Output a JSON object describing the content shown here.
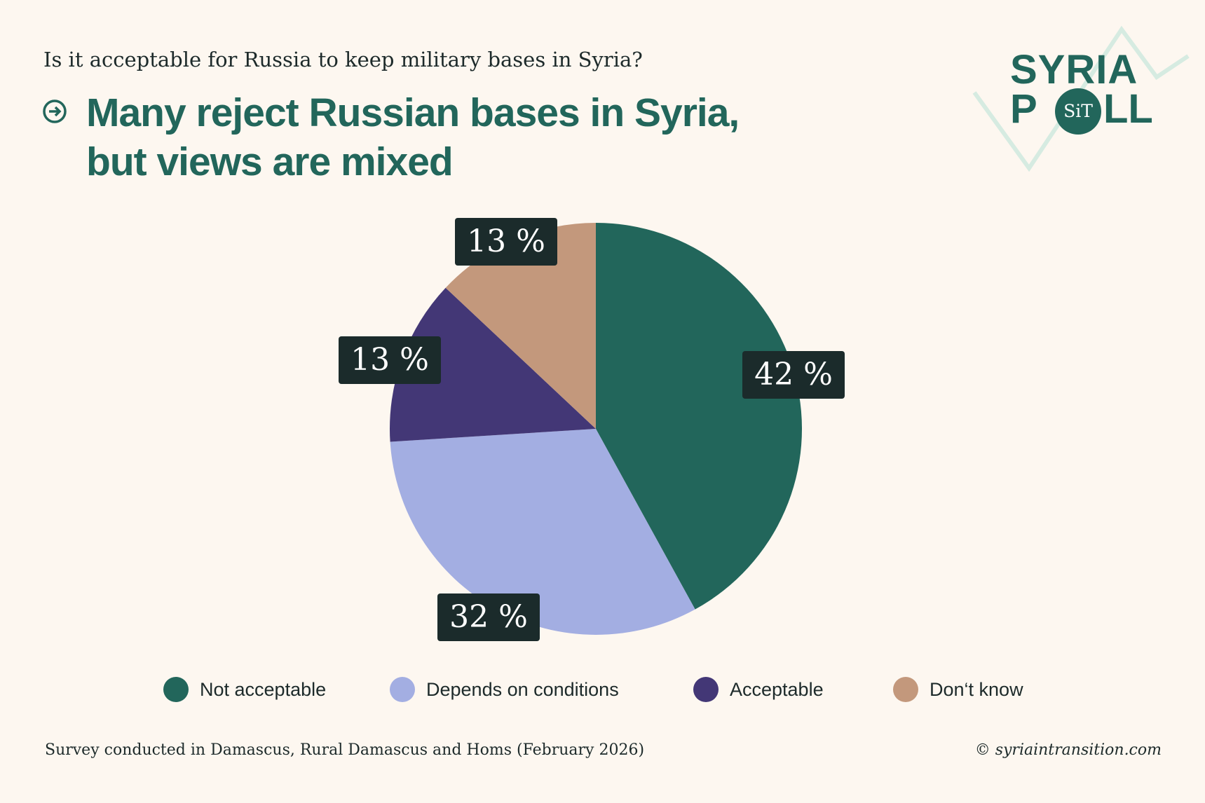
{
  "question": "Is it acceptable for Russia to keep military bases in Syria?",
  "headline": [
    "Many reject Russian bases in Syria,",
    "but views are mixed"
  ],
  "logo": {
    "line1": "SYRIA",
    "line2_left": "P",
    "badge": "SiT",
    "line2_right": "LL"
  },
  "chart_data": {
    "type": "pie",
    "title": "Many reject Russian bases in Syria, but views are mixed",
    "categories": [
      "Not acceptable",
      "Depends on conditions",
      "Acceptable",
      "Don‘t know"
    ],
    "values": [
      42,
      32,
      13,
      13
    ],
    "labels": [
      "42 %",
      "32 %",
      "13 %",
      "13 %"
    ],
    "colors": [
      "#22665b",
      "#a3aee2",
      "#433776",
      "#c3987c"
    ],
    "start": "12 o'clock, clockwise",
    "legend_position": "bottom"
  },
  "footer": {
    "note": "Survey conducted in Damascus, Rural Damascus and Homs (February 2026)",
    "credit": "© syriaintransition.com"
  }
}
